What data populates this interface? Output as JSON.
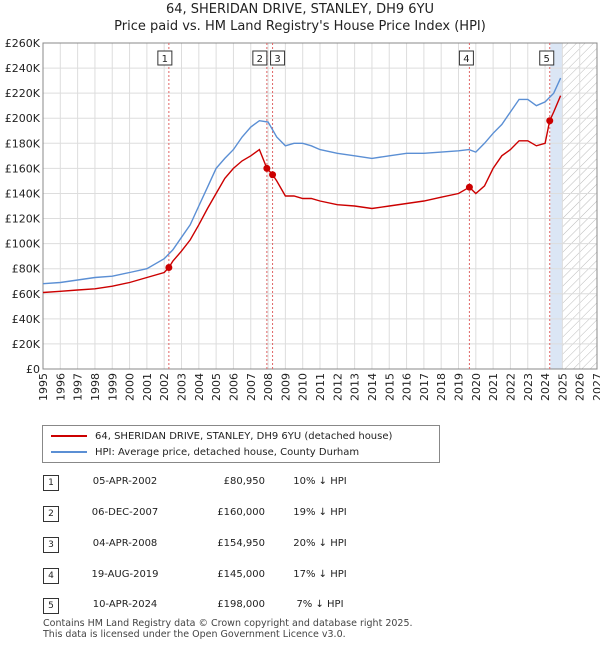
{
  "title_line1": "64, SHERIDAN DRIVE, STANLEY, DH9 6YU",
  "title_line2": "Price paid vs. HM Land Registry's House Price Index (HPI)",
  "colors": {
    "property": "#cc0000",
    "hpi": "#5b8fd4",
    "marker_line": "#e06666",
    "shade": "#dbe6f5"
  },
  "legend": {
    "property": "64, SHERIDAN DRIVE, STANLEY, DH9 6YU (detached house)",
    "hpi": "HPI: Average price, detached house, County Durham"
  },
  "transactions": [
    {
      "num": "1",
      "date": "05-APR-2002",
      "price": "£80,950",
      "hpi": "10% ↓ HPI"
    },
    {
      "num": "2",
      "date": "06-DEC-2007",
      "price": "£160,000",
      "hpi": "19% ↓ HPI"
    },
    {
      "num": "3",
      "date": "04-APR-2008",
      "price": "£154,950",
      "hpi": "20% ↓ HPI"
    },
    {
      "num": "4",
      "date": "19-AUG-2019",
      "price": "£145,000",
      "hpi": "17% ↓ HPI"
    },
    {
      "num": "5",
      "date": "10-APR-2024",
      "price": "£198,000",
      "hpi": "7% ↓ HPI"
    }
  ],
  "footer_line1": "Contains HM Land Registry data © Crown copyright and database right 2025.",
  "footer_line2": "This data is licensed under the Open Government Licence v3.0.",
  "chart_data": {
    "type": "line",
    "title": "64, SHERIDAN DRIVE, STANLEY, DH9 6YU — Price paid vs. HM Land Registry's House Price Index (HPI)",
    "xlim": [
      1995,
      2027
    ],
    "ylim": [
      0,
      260000
    ],
    "yticks": [
      0,
      20000,
      40000,
      60000,
      80000,
      100000,
      120000,
      140000,
      160000,
      180000,
      200000,
      220000,
      240000,
      260000
    ],
    "ytick_labels": [
      "£0",
      "£20K",
      "£40K",
      "£60K",
      "£80K",
      "£100K",
      "£120K",
      "£140K",
      "£160K",
      "£180K",
      "£200K",
      "£220K",
      "£240K",
      "£260K"
    ],
    "xticks": [
      1995,
      1996,
      1997,
      1998,
      1999,
      2000,
      2001,
      2002,
      2003,
      2004,
      2005,
      2006,
      2007,
      2008,
      2009,
      2010,
      2011,
      2012,
      2013,
      2014,
      2015,
      2016,
      2017,
      2018,
      2019,
      2020,
      2021,
      2022,
      2023,
      2024,
      2025,
      2026,
      2027
    ],
    "grid": true,
    "forecast_shade_from": 2024.3,
    "future_hatch_from": 2025.0,
    "series": [
      {
        "name": "HPI: Average price, detached house, County Durham",
        "x": [
          1995.0,
          1996.0,
          1997.0,
          1998.0,
          1999.0,
          2000.0,
          2001.0,
          2002.0,
          2002.5,
          2003.0,
          2003.5,
          2004.0,
          2004.5,
          2005.0,
          2005.5,
          2006.0,
          2006.5,
          2007.0,
          2007.5,
          2008.0,
          2008.5,
          2009.0,
          2009.5,
          2010.0,
          2010.5,
          2011.0,
          2012.0,
          2013.0,
          2014.0,
          2015.0,
          2016.0,
          2017.0,
          2018.0,
          2019.0,
          2019.6,
          2020.0,
          2020.5,
          2021.0,
          2021.5,
          2022.0,
          2022.5,
          2023.0,
          2023.5,
          2024.0,
          2024.5,
          2024.9
        ],
        "values": [
          68000,
          69000,
          71000,
          73000,
          74000,
          77000,
          80000,
          88000,
          95000,
          105000,
          115000,
          130000,
          145000,
          160000,
          168000,
          175000,
          185000,
          193000,
          198000,
          197000,
          185000,
          178000,
          180000,
          180000,
          178000,
          175000,
          172000,
          170000,
          168000,
          170000,
          172000,
          172000,
          173000,
          174000,
          175000,
          173000,
          180000,
          188000,
          195000,
          205000,
          215000,
          215000,
          210000,
          213000,
          220000,
          232000
        ]
      },
      {
        "name": "64, SHERIDAN DRIVE, STANLEY, DH9 6YU (detached house)",
        "x": [
          1995.0,
          1996.0,
          1997.0,
          1998.0,
          1999.0,
          2000.0,
          2001.0,
          2002.0,
          2002.27,
          2002.5,
          2003.0,
          2003.5,
          2004.0,
          2004.5,
          2005.0,
          2005.5,
          2006.0,
          2006.5,
          2007.0,
          2007.5,
          2007.93,
          2008.26,
          2008.5,
          2009.0,
          2009.5,
          2010.0,
          2010.5,
          2011.0,
          2012.0,
          2013.0,
          2014.0,
          2015.0,
          2016.0,
          2017.0,
          2018.0,
          2019.0,
          2019.63,
          2020.0,
          2020.5,
          2021.0,
          2021.5,
          2022.0,
          2022.5,
          2023.0,
          2023.5,
          2024.0,
          2024.27,
          2024.5,
          2024.9
        ],
        "values": [
          61000,
          62000,
          63000,
          64000,
          66000,
          69000,
          73000,
          77000,
          80950,
          86000,
          94000,
          103000,
          115000,
          128000,
          140000,
          152000,
          160000,
          166000,
          170000,
          175000,
          160000,
          154950,
          150000,
          138000,
          138000,
          136000,
          136000,
          134000,
          131000,
          130000,
          128000,
          130000,
          132000,
          134000,
          137000,
          140000,
          145000,
          140000,
          146000,
          160000,
          170000,
          175000,
          182000,
          182000,
          178000,
          180000,
          198000,
          205000,
          218000
        ]
      }
    ],
    "sales": [
      {
        "label": "1",
        "x": 2002.27,
        "y": 80950
      },
      {
        "label": "2",
        "x": 2007.93,
        "y": 160000
      },
      {
        "label": "3",
        "x": 2008.26,
        "y": 154950
      },
      {
        "label": "4",
        "x": 2019.63,
        "y": 145000
      },
      {
        "label": "5",
        "x": 2024.27,
        "y": 198000
      }
    ]
  }
}
